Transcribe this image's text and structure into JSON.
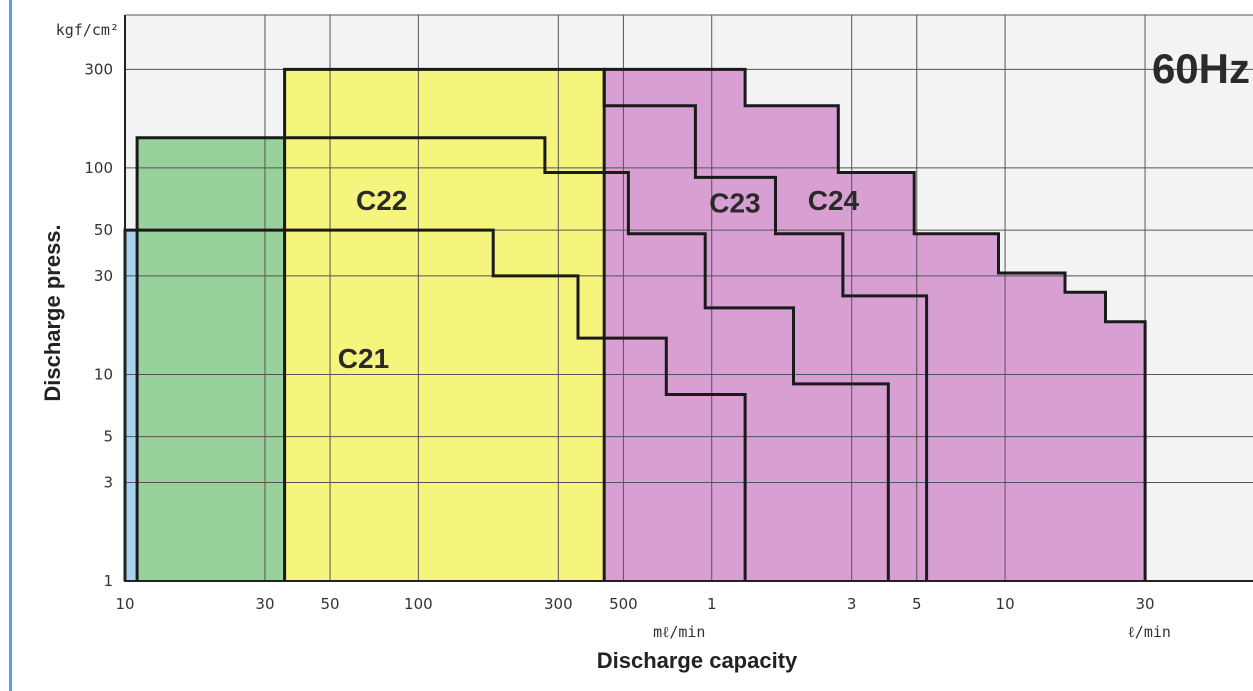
{
  "chart_data": {
    "type": "area",
    "title": "60Hz",
    "xlabel": "Discharge capacity",
    "ylabel": "Discharge press.",
    "x_scale": "log",
    "y_scale": "log",
    "x_unit": "L/min",
    "y_unit": "kgf/cm²",
    "xlim": [
      0.01,
      70
    ],
    "ylim": [
      1,
      550
    ],
    "grid": true,
    "x_tick_labels": [
      {
        "value": 0.01,
        "label": "10"
      },
      {
        "value": 0.03,
        "label": "30"
      },
      {
        "value": 0.05,
        "label": "50"
      },
      {
        "value": 0.1,
        "label": "100"
      },
      {
        "value": 0.3,
        "label": "300"
      },
      {
        "value": 0.5,
        "label": "500"
      },
      {
        "value": 1,
        "label": "1"
      },
      {
        "value": 3,
        "label": "3"
      },
      {
        "value": 5,
        "label": "5"
      },
      {
        "value": 10,
        "label": "10"
      },
      {
        "value": 30,
        "label": "30"
      }
    ],
    "x_unit_labels": [
      {
        "value": 0.8,
        "label": "mℓ/min"
      },
      {
        "value": 32,
        "label": "ℓ/min"
      }
    ],
    "y_tick_labels": [
      {
        "value": 1,
        "label": "1"
      },
      {
        "value": 3,
        "label": "3"
      },
      {
        "value": 5,
        "label": "5"
      },
      {
        "value": 10,
        "label": "10"
      },
      {
        "value": 30,
        "label": "30"
      },
      {
        "value": 50,
        "label": "50"
      },
      {
        "value": 100,
        "label": "100"
      },
      {
        "value": 300,
        "label": "300"
      }
    ],
    "y_unit_label": "kgf/cm²",
    "series": [
      {
        "name": "C21",
        "color": "#a9d4ee",
        "label_at": [
          0.065,
          12
        ],
        "points": [
          [
            0.01,
            1
          ],
          [
            0.01,
            50
          ],
          [
            0.18,
            50
          ],
          [
            0.18,
            30
          ],
          [
            0.35,
            30
          ],
          [
            0.35,
            15
          ],
          [
            0.7,
            15
          ],
          [
            0.7,
            8
          ],
          [
            1.3,
            8
          ],
          [
            1.3,
            1
          ]
        ]
      },
      {
        "name": "C22",
        "color": "#99d19c",
        "label_at": [
          0.075,
          70
        ],
        "points": [
          [
            0.011,
            1
          ],
          [
            0.011,
            140
          ],
          [
            0.27,
            140
          ],
          [
            0.27,
            95
          ],
          [
            0.52,
            95
          ],
          [
            0.52,
            48
          ],
          [
            0.95,
            48
          ],
          [
            0.95,
            21
          ],
          [
            1.9,
            21
          ],
          [
            1.9,
            9
          ],
          [
            4.0,
            9
          ],
          [
            4.0,
            1
          ]
        ]
      },
      {
        "name": "C23",
        "color": "#f5f47d",
        "label_at": [
          1.2,
          68
        ],
        "points": [
          [
            0.035,
            1
          ],
          [
            0.035,
            300
          ],
          [
            0.43,
            300
          ],
          [
            0.43,
            200
          ],
          [
            0.88,
            200
          ],
          [
            0.88,
            90
          ],
          [
            1.65,
            90
          ],
          [
            1.65,
            48
          ],
          [
            2.8,
            48
          ],
          [
            2.8,
            24
          ],
          [
            5.4,
            24
          ],
          [
            5.4,
            1
          ]
        ]
      },
      {
        "name": "C24",
        "color": "#d89fd2",
        "label_at": [
          2.6,
          70
        ],
        "points": [
          [
            0.43,
            1
          ],
          [
            0.43,
            300
          ],
          [
            1.3,
            300
          ],
          [
            1.3,
            200
          ],
          [
            2.7,
            200
          ],
          [
            2.7,
            95
          ],
          [
            4.9,
            95
          ],
          [
            4.9,
            48
          ],
          [
            9.5,
            48
          ],
          [
            9.5,
            31
          ],
          [
            16,
            31
          ],
          [
            16,
            25
          ],
          [
            22,
            25
          ],
          [
            22,
            18
          ],
          [
            30,
            18
          ],
          [
            30,
            1
          ]
        ]
      }
    ]
  }
}
